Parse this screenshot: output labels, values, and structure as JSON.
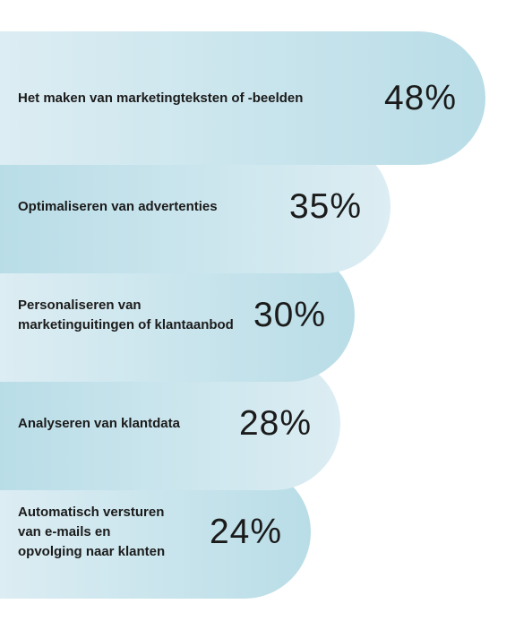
{
  "chart_data": {
    "type": "bar",
    "orientation": "horizontal",
    "categories": [
      "Het maken van marketingteksten of -beelden",
      "Optimaliseren van advertenties",
      "Personaliseren van\nmarketinguitingen of klantaanbod",
      "Analyseren van klantdata",
      "Automatisch versturen\nvan e-mails en\nopvolging naar klanten"
    ],
    "values": [
      48,
      35,
      30,
      28,
      24
    ],
    "value_labels": [
      "48%",
      "35%",
      "30%",
      "28%",
      "24%"
    ],
    "colors": {
      "gradient_light": "#dcedf3",
      "gradient_dark": "#b9dde7",
      "text": "#1b1b1b"
    }
  }
}
